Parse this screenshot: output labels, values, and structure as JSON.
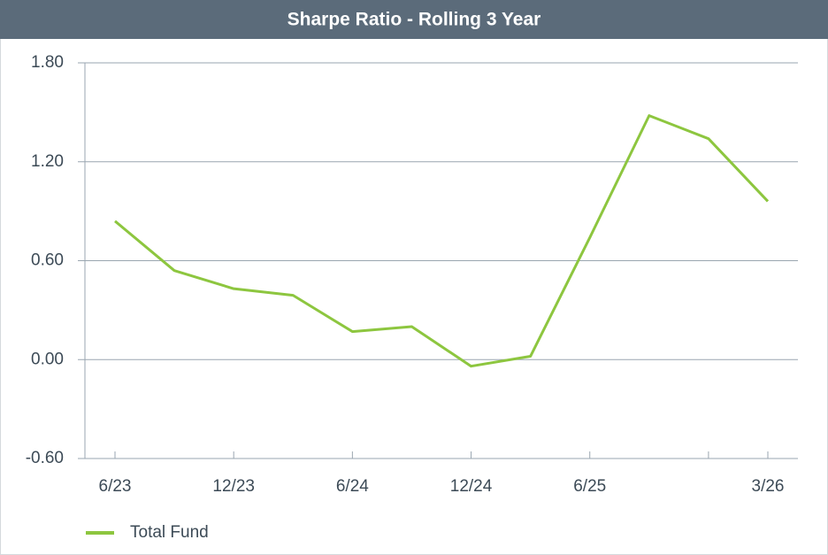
{
  "chart_data": {
    "type": "line",
    "title": "Sharpe Ratio - Rolling 3 Year",
    "categories": [
      "6/23",
      null,
      "12/23",
      null,
      "6/24",
      null,
      "12/24",
      null,
      "6/25",
      null,
      null,
      "3/26"
    ],
    "series": [
      {
        "name": "Total Fund",
        "color": "#8dc63f",
        "values": [
          0.84,
          0.54,
          0.43,
          0.39,
          0.17,
          0.2,
          -0.04,
          0.02,
          0.74,
          1.48,
          1.34,
          0.96
        ]
      }
    ],
    "ylim": [
      -0.6,
      1.8
    ],
    "yticks": [
      {
        "value": -0.6,
        "label": "-0.60"
      },
      {
        "value": 0,
        "label": "0.00"
      },
      {
        "value": 0.6,
        "label": "0.60"
      },
      {
        "value": 1.2,
        "label": "1.20"
      },
      {
        "value": 1.8,
        "label": "1.80"
      }
    ],
    "grid": true,
    "legend": "bottom-left"
  }
}
